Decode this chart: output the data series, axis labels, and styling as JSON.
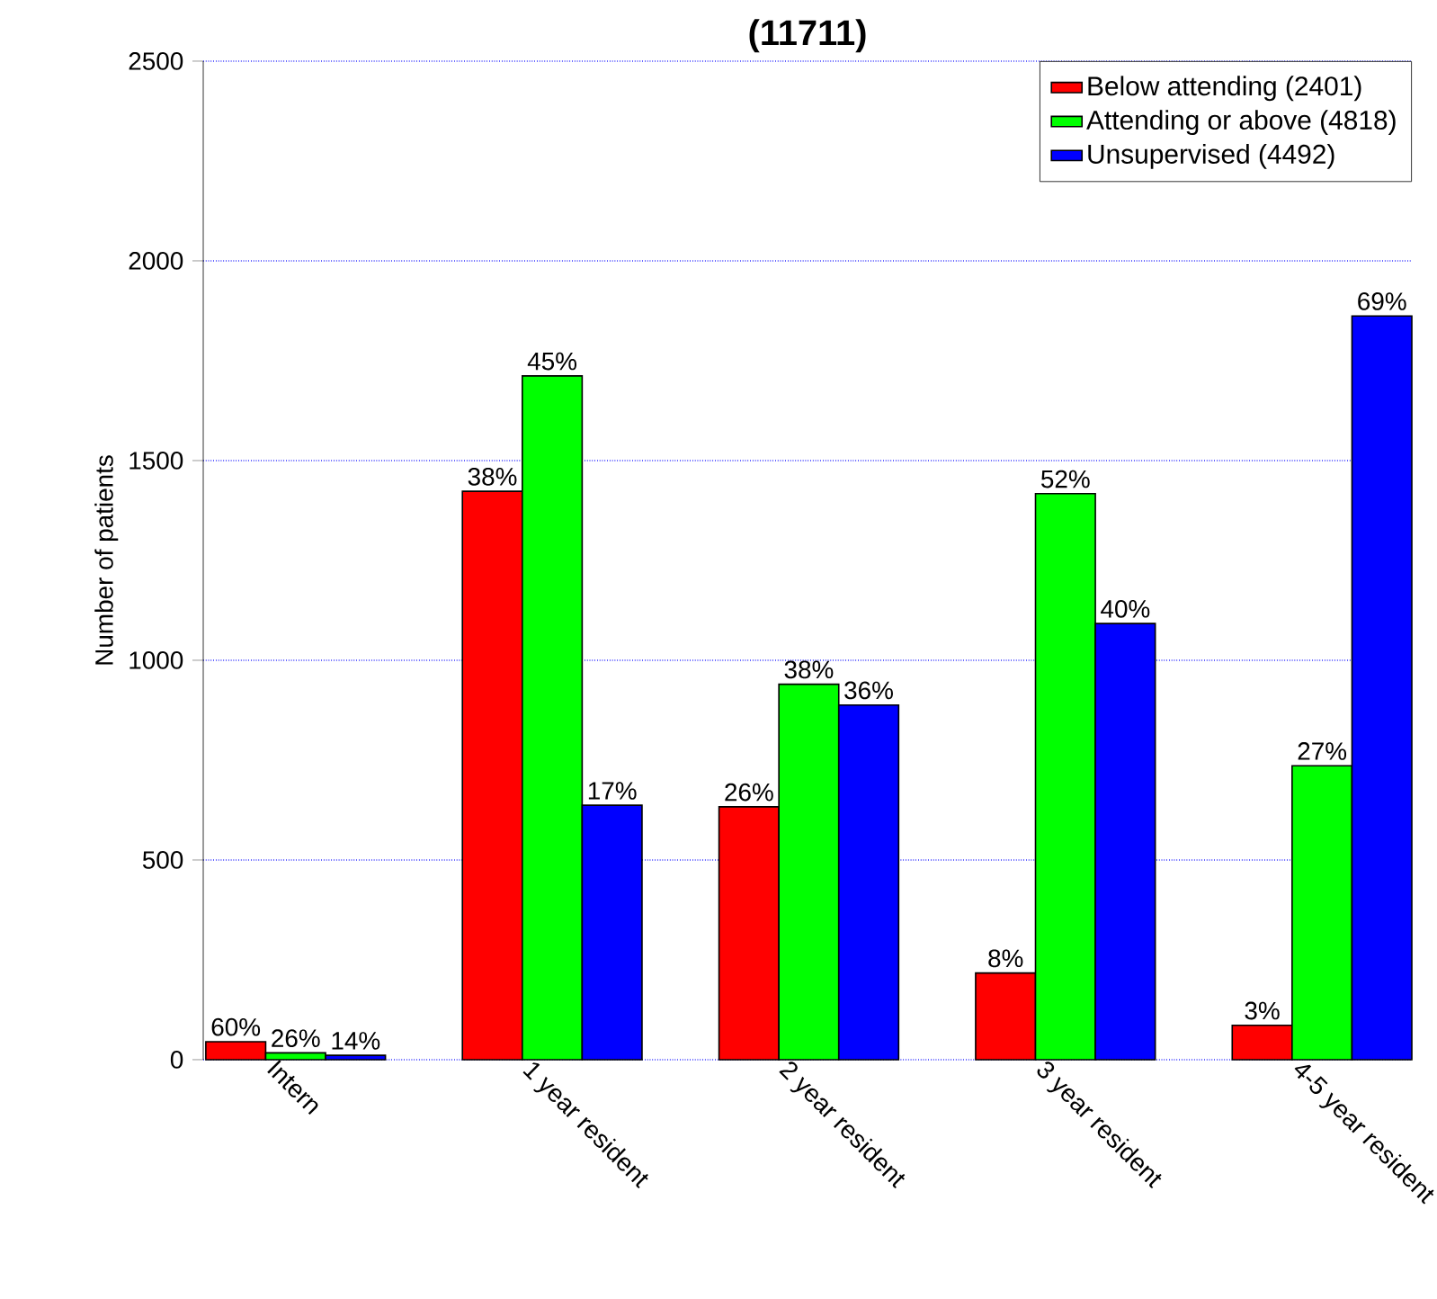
{
  "chart_data": {
    "type": "bar",
    "title": "(11711)",
    "ylabel": "Number of patients",
    "categories": [
      "Intern",
      "1 year resident",
      "2 year resident",
      "3 year resident",
      "4-5 year resident"
    ],
    "series": [
      {
        "name": "Below attending (2401)",
        "color": "#ff0000",
        "values": [
          45,
          1423,
          633,
          217,
          86
        ]
      },
      {
        "name": "Attending or above (4818)",
        "color": "#00ff00",
        "values": [
          17,
          1712,
          940,
          1417,
          736
        ]
      },
      {
        "name": "Unsupervised (4492)",
        "color": "#0000ff",
        "values": [
          11,
          637,
          888,
          1092,
          1862
        ]
      }
    ],
    "annotations": [
      "60%",
      "38%",
      "26%",
      "8%",
      "3%",
      "26%",
      "45%",
      "38%",
      "52%",
      "27%",
      "14%",
      "17%",
      "36%",
      "40%",
      "69%"
    ],
    "ylim": [
      0,
      2500
    ],
    "yticks": [
      0,
      500,
      1000,
      1500,
      2000,
      2500
    ],
    "grid": "y",
    "legend": "top right"
  }
}
